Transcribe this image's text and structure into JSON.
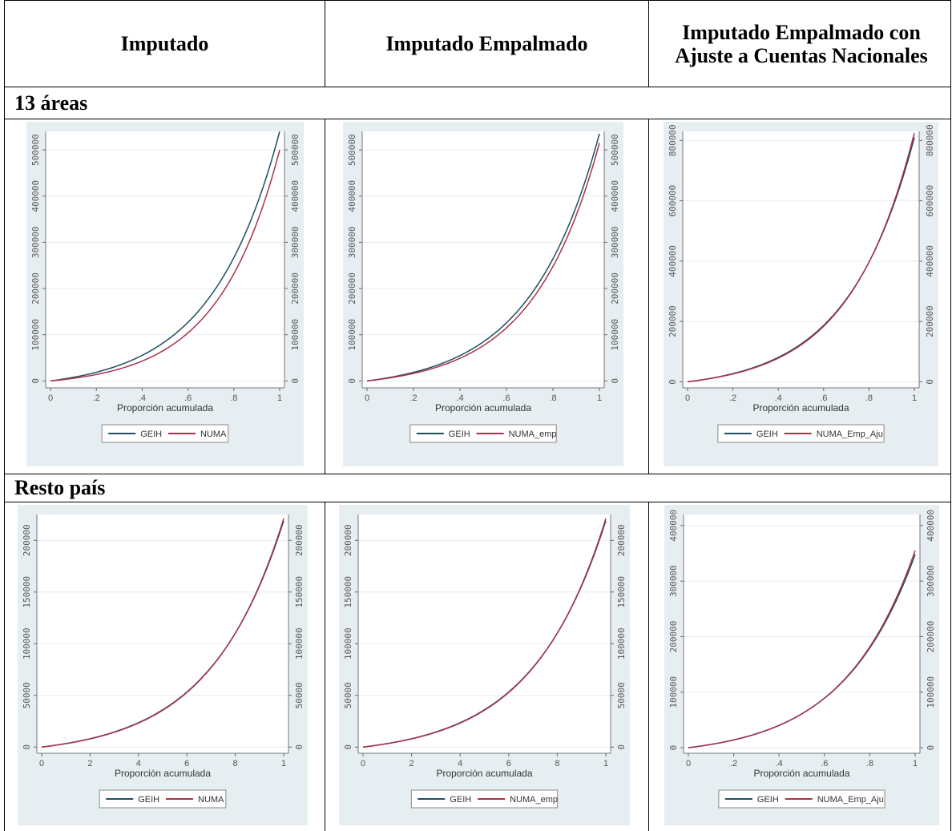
{
  "table": {
    "headers": [
      "Imputado",
      "Imputado Empalmado",
      "Imputado Empalmado con Ajuste a Cuentas Nacionales"
    ],
    "sections": [
      "13 áreas",
      "Resto país"
    ]
  },
  "colors": {
    "geih": "#1f4e5f",
    "numa": "#a8324a",
    "panel_bg": "#e6eef2",
    "grid": "#e8ecef"
  },
  "chart_data": [
    {
      "type": "line",
      "section": "13 áreas",
      "column": "Imputado",
      "xlabel": "Proporción acumulada",
      "xticks": [
        "0",
        ".2",
        ".4",
        ".6",
        ".8",
        "1"
      ],
      "yticks": [
        0,
        100000,
        200000,
        300000,
        400000,
        500000
      ],
      "ylim": [
        -15000,
        540000
      ],
      "series": [
        {
          "name": "GEIH",
          "end": 540000,
          "shape": 3.35
        },
        {
          "name": "NUMA",
          "end": 500000,
          "shape": 3.7
        }
      ]
    },
    {
      "type": "line",
      "section": "13 áreas",
      "column": "Imputado Empalmado",
      "xlabel": "Proporción acumulada",
      "xticks": [
        "0",
        ".2",
        ".4",
        ".6",
        ".8",
        "1"
      ],
      "yticks": [
        0,
        100000,
        200000,
        300000,
        400000,
        500000
      ],
      "ylim": [
        -15000,
        540000
      ],
      "series": [
        {
          "name": "GEIH",
          "end": 535000,
          "shape": 3.35
        },
        {
          "name": "NUMA_emp",
          "end": 515000,
          "shape": 3.5
        }
      ]
    },
    {
      "type": "line",
      "section": "13 áreas",
      "column": "Imputado Empalmado con Ajuste a Cuentas Nacionales",
      "xlabel": "Proporción acumulada",
      "xticks": [
        "0",
        ".2",
        ".4",
        ".6",
        ".8",
        "1"
      ],
      "yticks": [
        0,
        200000,
        400000,
        600000,
        800000
      ],
      "ylim": [
        -20000,
        830000
      ],
      "series": [
        {
          "name": "GEIH",
          "end": 810000,
          "shape": 3.4
        },
        {
          "name": "NUMA_Emp_Aju",
          "end": 825000,
          "shape": 3.5
        }
      ]
    },
    {
      "type": "line",
      "section": "Resto país",
      "column": "Imputado",
      "xlabel": "Proporción acumulada",
      "xticks": [
        "0",
        "2",
        "4",
        "6",
        "8",
        "1"
      ],
      "yticks": [
        0,
        50000,
        100000,
        150000,
        200000
      ],
      "ylim": [
        -6000,
        225000
      ],
      "series": [
        {
          "name": "GEIH",
          "end": 219000,
          "shape": 3.25
        },
        {
          "name": "NUMA",
          "end": 221000,
          "shape": 3.3
        }
      ]
    },
    {
      "type": "line",
      "section": "Resto país",
      "column": "Imputado Empalmado",
      "xlabel": "Proporción acumulada",
      "xticks": [
        "0",
        "2",
        "4",
        "6",
        "8",
        "1"
      ],
      "yticks": [
        0,
        50000,
        100000,
        150000,
        200000
      ],
      "ylim": [
        -6000,
        225000
      ],
      "series": [
        {
          "name": "GEIH",
          "end": 219000,
          "shape": 3.25
        },
        {
          "name": "NUMA_emp",
          "end": 221000,
          "shape": 3.3
        }
      ]
    },
    {
      "type": "line",
      "section": "Resto país",
      "column": "Imputado Empalmado con Ajuste a Cuentas Nacionales",
      "xlabel": "Proporción acumulada",
      "xticks": [
        "0",
        ".2",
        ".4",
        ".6",
        ".8",
        "1"
      ],
      "yticks": [
        0,
        100000,
        200000,
        300000,
        400000
      ],
      "ylim": [
        -10000,
        420000
      ],
      "series": [
        {
          "name": "GEIH",
          "end": 348000,
          "shape": 3.1
        },
        {
          "name": "NUMA_Emp_Aju",
          "end": 355000,
          "shape": 3.15
        }
      ]
    }
  ]
}
